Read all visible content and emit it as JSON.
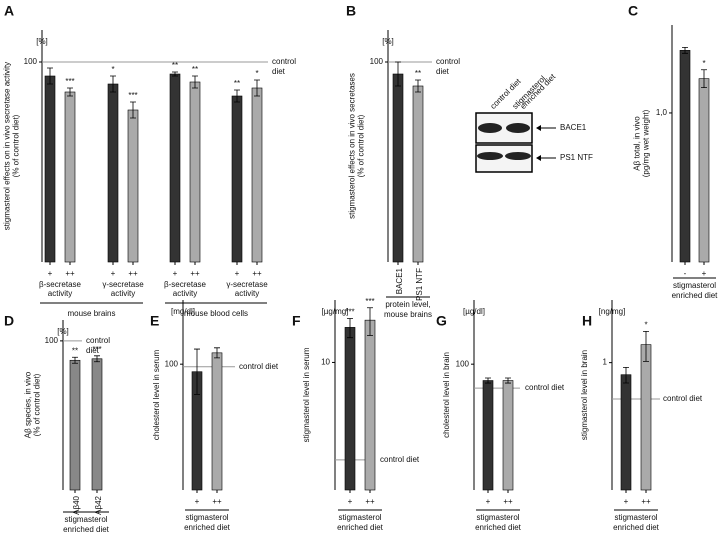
{
  "chart_data": [
    {
      "type": "bar",
      "title": "A",
      "unit": "[%]",
      "ylabel": [
        "stigmasterol effects on in vivo secretase activity",
        "(% of control diet)"
      ],
      "categories": [
        "+",
        "++",
        "+",
        "++",
        "+",
        "++",
        "+",
        "++"
      ],
      "values": [
        93,
        85,
        89,
        76,
        94,
        90,
        83,
        87
      ],
      "errors": [
        4,
        2,
        4,
        4,
        1,
        3,
        3,
        4
      ],
      "significance": [
        null,
        "***",
        "*",
        "***",
        "**",
        "**",
        "**",
        "*"
      ],
      "colors": [
        "#333333",
        "#aaaaaa",
        "#333333",
        "#aaaaaa",
        "#333333",
        "#aaaaaa",
        "#333333",
        "#aaaaaa"
      ],
      "ylim": [
        0,
        116
      ],
      "yticks": [
        100
      ],
      "reference": 100,
      "reference_label": [
        "control",
        "diet"
      ],
      "groups": [
        [
          "β-secretase",
          "activity"
        ],
        [
          "γ-secretase",
          "activity"
        ],
        [
          "β-secretase",
          "activity"
        ],
        [
          "γ-secretase",
          "activity"
        ]
      ],
      "supergroups": [
        "mouse brains",
        "mouse blood cells"
      ]
    },
    {
      "type": "bar",
      "title": "B",
      "unit": "[%]",
      "ylabel": [
        "stigmasterol effects on in vivo secretases",
        "(% of control diet)"
      ],
      "categories": [
        "BACE1",
        "PS1 NTF"
      ],
      "values": [
        94,
        88
      ],
      "errors": [
        6,
        3
      ],
      "significance": [
        null,
        "**"
      ],
      "colors": [
        "#333333",
        "#aaaaaa"
      ],
      "ylim": [
        0,
        116
      ],
      "yticks": [
        100
      ],
      "reference": 100,
      "reference_label": [
        "control",
        "diet"
      ],
      "footer": [
        "protein level,",
        "mouse brains"
      ]
    },
    {
      "type": "bar",
      "title": "C",
      "ylabel": [
        "Aβ total, in vivo",
        "(pg/mg wet weight)"
      ],
      "categories": [
        "-",
        "+"
      ],
      "values": [
        1.42,
        1.23
      ],
      "errors": [
        0.02,
        0.06
      ],
      "significance": [
        null,
        "*"
      ],
      "colors": [
        "#333333",
        "#aaaaaa"
      ],
      "ylim": [
        0,
        1.59
      ],
      "yticks": [
        {
          "value": 1,
          "label": "1,0"
        }
      ],
      "footer": [
        "stigmasterol",
        "enriched diet"
      ]
    },
    {
      "type": "bar",
      "title": "D",
      "unit": "[%]",
      "ylabel": [
        "Aβ species, in vivo",
        "(% of control diet)"
      ],
      "categories": [
        "Aβ40",
        "Aβ42"
      ],
      "values": [
        87,
        88
      ],
      "errors": [
        2,
        2
      ],
      "significance": [
        "**",
        "***"
      ],
      "colors": [
        "#888888",
        "#888888"
      ],
      "ylim": [
        0,
        114
      ],
      "yticks": [
        100
      ],
      "reference": 100,
      "reference_label": [
        "control",
        "diet"
      ],
      "footer": [
        "stigmasterol",
        "enriched diet"
      ]
    },
    {
      "type": "bar",
      "title": "E",
      "unit": "[mg/dl]",
      "ylabel": [
        "cholesterol level in serum"
      ],
      "categories": [
        "+",
        "++"
      ],
      "values": [
        94,
        109
      ],
      "errors": [
        18,
        4
      ],
      "significance": [
        null,
        null
      ],
      "colors": [
        "#333333",
        "#aaaaaa"
      ],
      "ylim": [
        0,
        151
      ],
      "yticks": [
        100
      ],
      "reference": 98,
      "reference_label": [
        "control diet"
      ],
      "footer": [
        "stigmasterol",
        "enriched diet"
      ]
    },
    {
      "type": "bar",
      "title": "F",
      "unit": "[µg/mg]",
      "log": true,
      "ylabel": [
        "stigmasterol level in serum"
      ],
      "categories": [
        "+",
        "++"
      ],
      "values": [
        17.1,
        19.1
      ],
      "errors": [
        2.5,
        4
      ],
      "significance": [
        "***",
        "***"
      ],
      "colors": [
        "#333333",
        "#aaaaaa"
      ],
      "ylim": [
        1.42,
        26
      ],
      "yticks": [
        10
      ],
      "reference": 2.25,
      "reference_label": [
        "control diet"
      ],
      "footer": [
        "stigmasterol",
        "enriched diet"
      ]
    },
    {
      "type": "bar",
      "title": "G",
      "unit": "[µg/dl]",
      "ylabel": [
        "cholesterol level in brain"
      ],
      "categories": [
        "+",
        "++"
      ],
      "values": [
        87,
        87
      ],
      "errors": [
        2,
        2
      ],
      "significance": [
        null,
        null
      ],
      "colors": [
        "#333333",
        "#aaaaaa"
      ],
      "ylim": [
        0,
        151
      ],
      "yticks": [
        100
      ],
      "reference": 81,
      "reference_label": [
        "control diet"
      ],
      "footer": [
        "stigmasterol",
        "enriched diet"
      ]
    },
    {
      "type": "bar",
      "title": "H",
      "unit": "[ng/mg]",
      "log": true,
      "ylabel": [
        "stigmasterol level in brain"
      ],
      "categories": [
        "+",
        "++"
      ],
      "values": [
        0.83,
        1.32
      ],
      "errors": [
        0.1,
        0.3
      ],
      "significance": [
        null,
        "*"
      ],
      "colors": [
        "#333333",
        "#aaaaaa"
      ],
      "ylim": [
        0.14,
        2.63
      ],
      "yticks": [
        1
      ],
      "reference": 0.57,
      "reference_label": [
        "control diet"
      ],
      "footer": [
        "stigmasterol",
        "enriched diet"
      ]
    }
  ],
  "blot": {
    "columns": [
      "control diet",
      "stigmasterol",
      "enriched diet"
    ],
    "bands": [
      "BACE1",
      "PS1 NTF"
    ]
  }
}
